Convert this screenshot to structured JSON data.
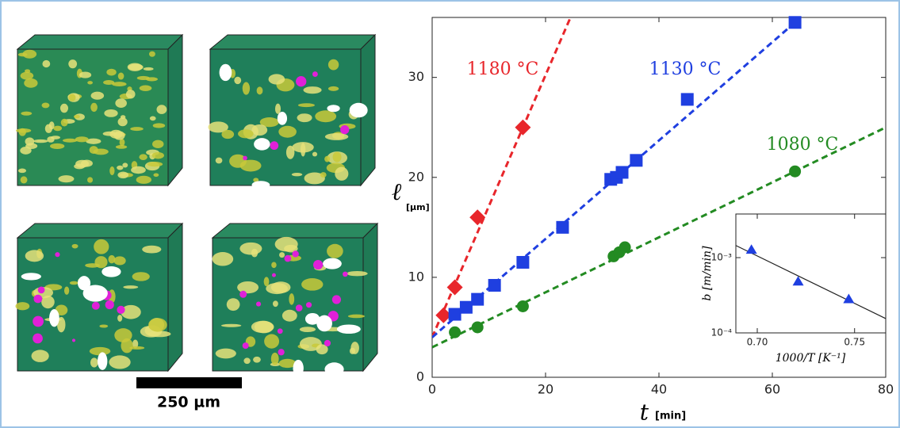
{
  "scale_bar_label": "250 µm",
  "chart_data": [
    {
      "type": "scatter",
      "xlabel": "t",
      "xlabel_unit": "[min]",
      "ylabel": "ℓ",
      "ylabel_unit": "[μm]",
      "xlim": [
        0,
        80
      ],
      "ylim": [
        0,
        36
      ],
      "xticks": [
        0,
        20,
        40,
        60,
        80
      ],
      "yticks": [
        0,
        10,
        20,
        30
      ],
      "series": [
        {
          "name": "1180 °C",
          "color": "#e8262b",
          "marker": "diamond",
          "x": [
            2,
            4,
            8,
            16
          ],
          "values": [
            6.2,
            9,
            16,
            25
          ],
          "fit": {
            "x": [
              0,
              24.4
            ],
            "values": [
              4,
              36
            ]
          }
        },
        {
          "name": "1130 °C",
          "color": "#1f3fe0",
          "marker": "square",
          "x": [
            4,
            6,
            8,
            11,
            16,
            23,
            31.5,
            32.5,
            33.5,
            36,
            45,
            64
          ],
          "values": [
            6.3,
            7,
            7.8,
            9.2,
            11.5,
            15,
            19.8,
            20,
            20.5,
            21.7,
            27.8,
            35.5
          ],
          "fit": {
            "x": [
              0,
              64
            ],
            "values": [
              4,
              35.5
            ]
          }
        },
        {
          "name": "1080 °C",
          "color": "#238b22",
          "marker": "circle",
          "x": [
            4,
            8,
            16,
            32,
            33,
            34,
            64
          ],
          "values": [
            4.5,
            5,
            7.1,
            12.1,
            12.5,
            13,
            20.6
          ],
          "fit": {
            "x": [
              0,
              80
            ],
            "values": [
              3,
              25
            ]
          }
        }
      ]
    },
    {
      "type": "scatter",
      "xlabel": "1000/T [K⁻¹]",
      "ylabel": "b [m/min]",
      "ylog": true,
      "xlim": [
        0.689,
        0.766
      ],
      "ylim": [
        0.0001,
        0.0038
      ],
      "xticks": [
        {
          "value": 0.7,
          "label": "0.70"
        },
        0.75
      ],
      "yticks": [
        {
          "value": 0.001,
          "label": "10⁻³"
        },
        {
          "value": 0.0001,
          "label": "10⁻⁴"
        }
      ],
      "series": [
        {
          "color": "#1f3fe0",
          "marker": "triangle",
          "x": [
            0.697,
            0.721,
            0.747
          ],
          "values": [
            0.00127,
            0.00048,
            0.00028
          ],
          "fit": {
            "x": [
              0.689,
              0.766
            ],
            "values": [
              0.00145,
              0.000155
            ]
          }
        }
      ]
    }
  ]
}
